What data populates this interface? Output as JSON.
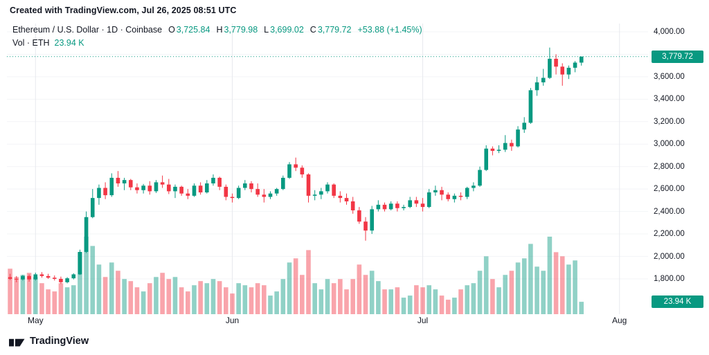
{
  "attribution": "Created with TradingView.com, Jul 26, 2025 08:51 UTC",
  "legend": {
    "symbol_line": "Ethereum / U.S. Dollar · 1D · Coinbase",
    "ohlc": [
      {
        "label": "O",
        "value": "3,725.84"
      },
      {
        "label": "H",
        "value": "3,779.98"
      },
      {
        "label": "L",
        "value": "3,699.02"
      },
      {
        "label": "C",
        "value": "3,779.72"
      }
    ],
    "change": "+53.88 (+1.45%)",
    "volume_label": "Vol · ETH",
    "volume_value": "23.94 K"
  },
  "price_axis": {
    "ticks": [
      "4,000.00",
      "3,800.00",
      "3,600.00",
      "3,400.00",
      "3,200.00",
      "3,000.00",
      "2,800.00",
      "2,600.00",
      "2,400.00",
      "2,200.00",
      "2,000.00",
      "1,800.00"
    ],
    "tick_values": [
      4000,
      3800,
      3600,
      3400,
      3200,
      3000,
      2800,
      2600,
      2400,
      2200,
      2000,
      1800
    ],
    "last_price_label": "3,779.72",
    "last_price_value": 3779.72,
    "volume_badge": "23.94 K"
  },
  "footer": {
    "brand": "TradingView"
  },
  "colors": {
    "up": "#089981",
    "down": "#f23645",
    "text": "#131722",
    "grid_vertical": "#e7e9ee",
    "grid_horizontal": "#f3f4f7",
    "badge_text": "#ffffff"
  },
  "chart_data": {
    "type": "candlestick",
    "symbol": "Ethereum / U.S. Dollar",
    "exchange": "Coinbase",
    "interval": "1D",
    "legend_ohlc": {
      "open": 3725.84,
      "high": 3779.98,
      "low": 3699.02,
      "close": 3779.72,
      "change": 53.88,
      "change_pct": 1.45
    },
    "current_volume_k": 23.94,
    "price_axis_range": [
      1800,
      4000
    ],
    "grid": true,
    "volume_overlay": true,
    "total_slots": 101,
    "volume_scale_max": 158,
    "month_ticks": [
      {
        "label": "May",
        "slot": 4
      },
      {
        "label": "Jun",
        "slot": 35
      },
      {
        "label": "Jul",
        "slot": 65
      },
      {
        "label": "Aug",
        "slot": 96
      }
    ],
    "columns": [
      "date",
      "open",
      "high",
      "low",
      "close",
      "volume_k"
    ],
    "candles": [
      [
        "Apr 27",
        1815,
        1845,
        1790,
        1800,
        88
      ],
      [
        "Apr 28",
        1800,
        1825,
        1770,
        1795,
        72
      ],
      [
        "Apr 29",
        1795,
        1835,
        1785,
        1825,
        76
      ],
      [
        "Apr 30",
        1825,
        1840,
        1775,
        1795,
        80
      ],
      [
        "May 1",
        1795,
        1855,
        1785,
        1840,
        72
      ],
      [
        "May 2",
        1840,
        1860,
        1810,
        1825,
        60
      ],
      [
        "May 3",
        1825,
        1845,
        1800,
        1810,
        48
      ],
      [
        "May 4",
        1810,
        1830,
        1785,
        1800,
        44
      ],
      [
        "May 5",
        1800,
        1820,
        1755,
        1770,
        60
      ],
      [
        "May 6",
        1770,
        1815,
        1760,
        1805,
        52
      ],
      [
        "May 7",
        1805,
        1850,
        1795,
        1840,
        56
      ],
      [
        "May 8",
        1840,
        2060,
        1835,
        2040,
        120
      ],
      [
        "May 9",
        2040,
        2400,
        2030,
        2350,
        150
      ],
      [
        "May 10",
        2350,
        2600,
        2340,
        2520,
        132
      ],
      [
        "May 11",
        2520,
        2640,
        2460,
        2610,
        96
      ],
      [
        "May 12",
        2610,
        2660,
        2510,
        2545,
        72
      ],
      [
        "May 13",
        2545,
        2740,
        2530,
        2700,
        100
      ],
      [
        "May 14",
        2700,
        2760,
        2620,
        2650,
        84
      ],
      [
        "May 15",
        2650,
        2700,
        2590,
        2680,
        68
      ],
      [
        "May 16",
        2680,
        2690,
        2590,
        2615,
        64
      ],
      [
        "May 17",
        2615,
        2650,
        2560,
        2590,
        52
      ],
      [
        "May 18",
        2590,
        2645,
        2560,
        2630,
        44
      ],
      [
        "May 19",
        2630,
        2670,
        2550,
        2580,
        60
      ],
      [
        "May 20",
        2580,
        2680,
        2565,
        2660,
        72
      ],
      [
        "May 21",
        2660,
        2720,
        2610,
        2640,
        80
      ],
      [
        "May 22",
        2640,
        2690,
        2555,
        2580,
        68
      ],
      [
        "May 23",
        2580,
        2640,
        2520,
        2620,
        72
      ],
      [
        "May 24",
        2620,
        2630,
        2540,
        2560,
        52
      ],
      [
        "May 25",
        2560,
        2600,
        2510,
        2540,
        44
      ],
      [
        "May 26",
        2540,
        2650,
        2530,
        2630,
        56
      ],
      [
        "May 27",
        2630,
        2660,
        2550,
        2570,
        64
      ],
      [
        "May 28",
        2570,
        2680,
        2560,
        2650,
        60
      ],
      [
        "May 29",
        2650,
        2730,
        2630,
        2700,
        68
      ],
      [
        "May 30",
        2700,
        2710,
        2590,
        2620,
        64
      ],
      [
        "May 31",
        2620,
        2640,
        2500,
        2530,
        52
      ],
      [
        "Jun 1",
        2530,
        2560,
        2480,
        2520,
        40
      ],
      [
        "Jun 2",
        2520,
        2630,
        2510,
        2610,
        60
      ],
      [
        "Jun 3",
        2610,
        2680,
        2590,
        2650,
        56
      ],
      [
        "Jun 4",
        2650,
        2670,
        2570,
        2600,
        52
      ],
      [
        "Jun 5",
        2600,
        2650,
        2530,
        2550,
        60
      ],
      [
        "Jun 6",
        2550,
        2600,
        2480,
        2530,
        56
      ],
      [
        "Jun 7",
        2530,
        2580,
        2510,
        2560,
        36
      ],
      [
        "Jun 8",
        2560,
        2610,
        2540,
        2600,
        44
      ],
      [
        "Jun 9",
        2600,
        2720,
        2590,
        2700,
        68
      ],
      [
        "Jun 10",
        2700,
        2840,
        2690,
        2820,
        100
      ],
      [
        "Jun 11",
        2820,
        2880,
        2760,
        2790,
        108
      ],
      [
        "Jun 12",
        2790,
        2810,
        2700,
        2730,
        76
      ],
      [
        "Jun 13",
        2730,
        2740,
        2480,
        2540,
        124
      ],
      [
        "Jun 14",
        2540,
        2590,
        2500,
        2550,
        60
      ],
      [
        "Jun 15",
        2550,
        2610,
        2510,
        2580,
        48
      ],
      [
        "Jun 16",
        2580,
        2660,
        2560,
        2640,
        68
      ],
      [
        "Jun 17",
        2640,
        2650,
        2520,
        2540,
        60
      ],
      [
        "Jun 18",
        2540,
        2580,
        2480,
        2520,
        68
      ],
      [
        "Jun 19",
        2520,
        2560,
        2460,
        2490,
        48
      ],
      [
        "Jun 20",
        2490,
        2530,
        2380,
        2410,
        68
      ],
      [
        "Jun 21",
        2410,
        2440,
        2290,
        2310,
        96
      ],
      [
        "Jun 22",
        2310,
        2350,
        2140,
        2230,
        76
      ],
      [
        "Jun 23",
        2230,
        2450,
        2200,
        2420,
        84
      ],
      [
        "Jun 24",
        2420,
        2500,
        2400,
        2460,
        64
      ],
      [
        "Jun 25",
        2460,
        2480,
        2400,
        2420,
        48
      ],
      [
        "Jun 26",
        2420,
        2490,
        2410,
        2470,
        48
      ],
      [
        "Jun 27",
        2470,
        2490,
        2400,
        2430,
        52
      ],
      [
        "Jun 28",
        2430,
        2460,
        2410,
        2440,
        32
      ],
      [
        "Jun 29",
        2440,
        2530,
        2430,
        2500,
        36
      ],
      [
        "Jun 30",
        2500,
        2530,
        2440,
        2470,
        56
      ],
      [
        "Jul 1",
        2470,
        2520,
        2400,
        2440,
        52
      ],
      [
        "Jul 2",
        2440,
        2600,
        2430,
        2570,
        56
      ],
      [
        "Jul 3",
        2570,
        2630,
        2540,
        2590,
        48
      ],
      [
        "Jul 4",
        2590,
        2620,
        2500,
        2550,
        36
      ],
      [
        "Jul 5",
        2550,
        2570,
        2490,
        2510,
        28
      ],
      [
        "Jul 6",
        2510,
        2560,
        2480,
        2540,
        32
      ],
      [
        "Jul 7",
        2540,
        2570,
        2500,
        2530,
        48
      ],
      [
        "Jul 8",
        2530,
        2620,
        2510,
        2610,
        56
      ],
      [
        "Jul 9",
        2610,
        2660,
        2580,
        2630,
        60
      ],
      [
        "Jul 10",
        2630,
        2800,
        2620,
        2770,
        84
      ],
      [
        "Jul 11",
        2770,
        2990,
        2760,
        2960,
        112
      ],
      [
        "Jul 12",
        2960,
        2980,
        2900,
        2940,
        68
      ],
      [
        "Jul 13",
        2940,
        2990,
        2920,
        2950,
        52
      ],
      [
        "Jul 14",
        2950,
        3080,
        2930,
        3010,
        76
      ],
      [
        "Jul 15",
        3010,
        3040,
        2940,
        2980,
        84
      ],
      [
        "Jul 16",
        2980,
        3160,
        2970,
        3130,
        100
      ],
      [
        "Jul 17",
        3130,
        3240,
        3100,
        3190,
        108
      ],
      [
        "Jul 18",
        3190,
        3500,
        3180,
        3480,
        136
      ],
      [
        "Jul 19",
        3480,
        3600,
        3430,
        3550,
        92
      ],
      [
        "Jul 20",
        3550,
        3670,
        3520,
        3590,
        84
      ],
      [
        "Jul 21",
        3590,
        3860,
        3580,
        3760,
        150
      ],
      [
        "Jul 22",
        3760,
        3800,
        3620,
        3690,
        120
      ],
      [
        "Jul 23",
        3690,
        3720,
        3520,
        3620,
        112
      ],
      [
        "Jul 24",
        3620,
        3700,
        3580,
        3680,
        96
      ],
      [
        "Jul 25",
        3680,
        3740,
        3640,
        3726,
        104
      ],
      [
        "Jul 26",
        3725.84,
        3779.98,
        3699.02,
        3779.72,
        23.94
      ]
    ]
  }
}
